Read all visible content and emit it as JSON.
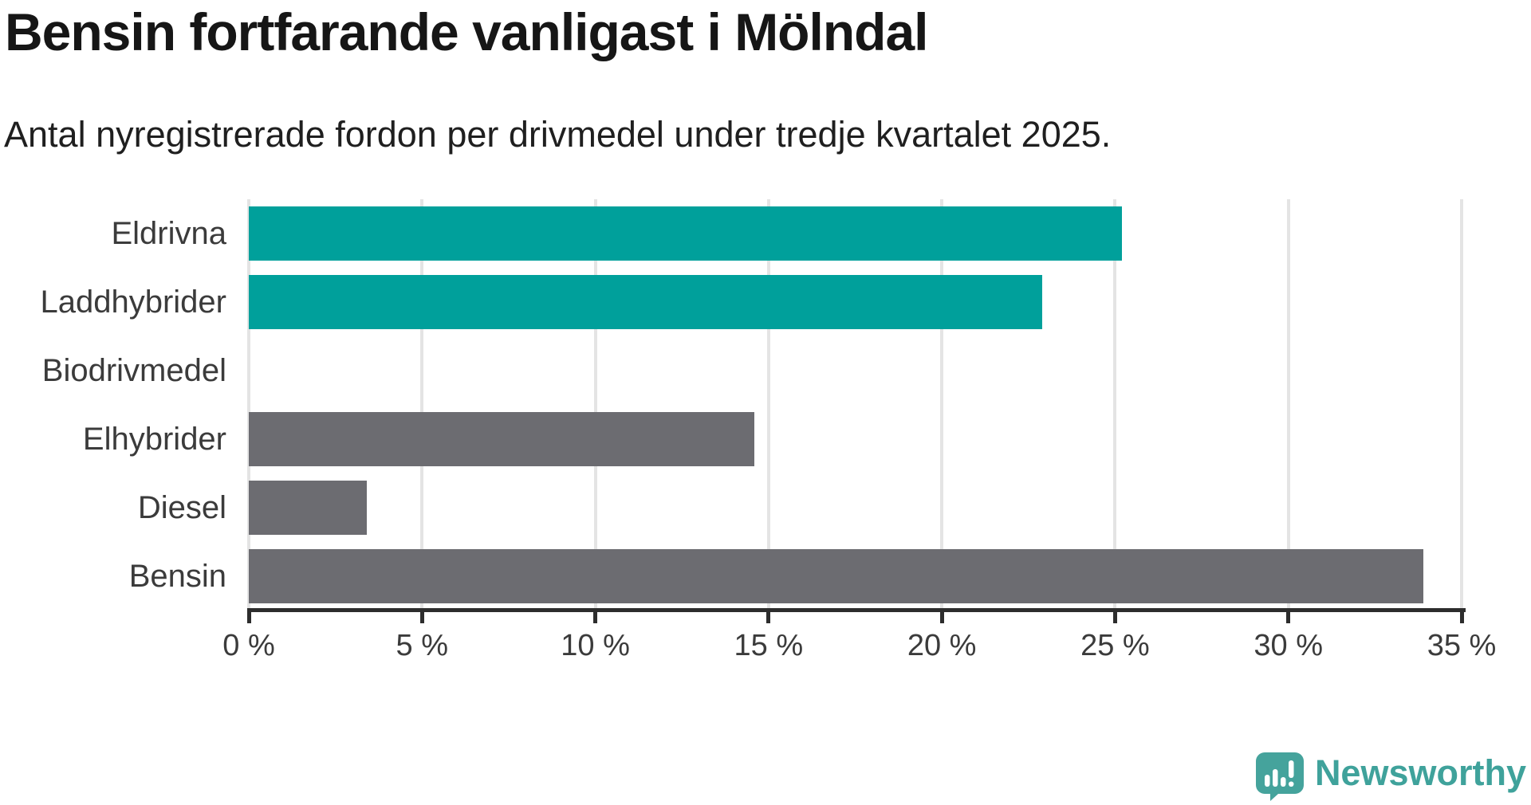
{
  "chart_data": {
    "type": "bar",
    "orientation": "horizontal",
    "title": "Bensin fortfarande vanligast i Mölndal",
    "subtitle": "Antal nyregistrerade fordon per drivmedel under tredje kvartalet 2025.",
    "categories": [
      "Eldrivna",
      "Laddhybrider",
      "Biodrivmedel",
      "Elhybrider",
      "Diesel",
      "Bensin"
    ],
    "values": [
      25.2,
      22.9,
      0,
      14.6,
      3.4,
      33.9
    ],
    "unit": "%",
    "bar_colors": [
      "#00A09B",
      "#00A09B",
      "#6C6C71",
      "#6C6C71",
      "#6C6C71",
      "#6C6C71"
    ],
    "accent_color": "#00A09B",
    "neutral_color": "#6C6C71",
    "xlabel": "",
    "ylabel": "",
    "xlim": [
      0,
      35
    ],
    "xticks": [
      0,
      5,
      10,
      15,
      20,
      25,
      30,
      35
    ],
    "tick_labels": [
      "0 %",
      "5 %",
      "10 %",
      "15 %",
      "20 %",
      "25 %",
      "30 %",
      "35 %"
    ],
    "grid": true,
    "gridline_color": "#e4e4e4",
    "legend": false
  },
  "branding": {
    "name": "Newsworthy",
    "color": "#3fa29b"
  }
}
